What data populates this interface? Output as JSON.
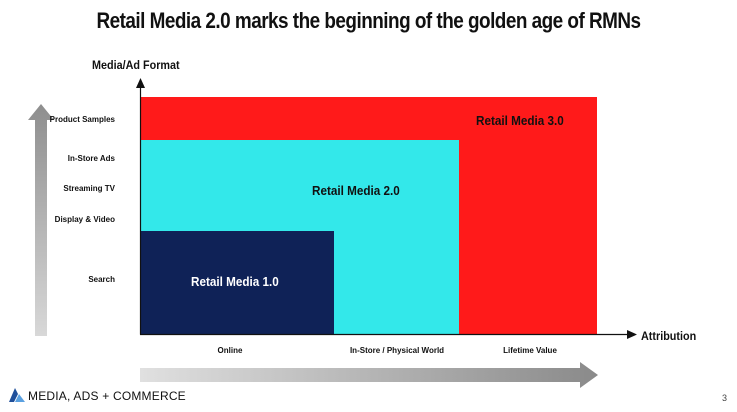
{
  "title": "Retail Media 2.0 marks the beginning of the golden age of RMNs",
  "y_axis_title": "Media/Ad Format",
  "x_axis_title": "Attribution",
  "y_labels": [
    "Product Samples",
    "In-Store Ads",
    "Streaming TV",
    "Display & Video",
    "Search"
  ],
  "x_labels": [
    "Online",
    "In-Store / Physical World",
    "Lifetime Value"
  ],
  "blocks": [
    {
      "label": "Retail Media 3.0",
      "color": "#ff1a1a",
      "text_color": "#111111"
    },
    {
      "label": "Retail Media 2.0",
      "color": "#33e8ea",
      "text_color": "#111111"
    },
    {
      "label": "Retail Media 1.0",
      "color": "#0f2257",
      "text_color": "#ffffff"
    }
  ],
  "footer": {
    "brand": "MEDIA, ADS + COMMERCE",
    "page_number": "3"
  }
}
